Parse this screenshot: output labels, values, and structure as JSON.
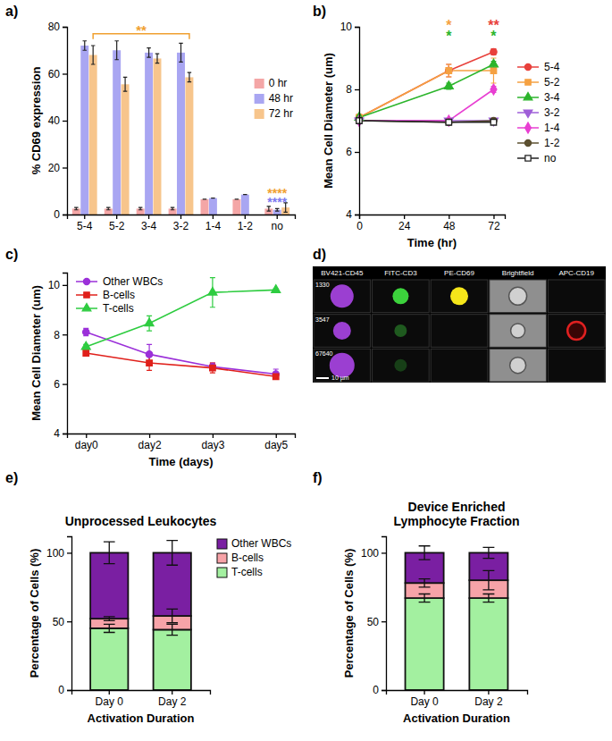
{
  "chart_data": [
    {
      "type": "bar",
      "panel_label": "a)",
      "y_label": "% CD69 expression",
      "categories": [
        "5-4",
        "5-2",
        "3-4",
        "3-2",
        "1-4",
        "1-2",
        "no"
      ],
      "series": [
        {
          "name": "0 hr",
          "color": "#f4a6a6",
          "values": [
            2.5,
            2.5,
            2.5,
            2.5,
            6.5,
            6.5,
            2.5
          ],
          "errors": [
            0.5,
            0.5,
            0.5,
            0.5,
            0,
            0,
            1
          ]
        },
        {
          "name": "48 hr",
          "color": "#a9a6f2",
          "values": [
            72,
            70,
            69,
            69,
            7,
            8.5,
            2
          ],
          "errors": [
            2,
            4,
            2,
            4,
            0,
            0,
            0.5
          ]
        },
        {
          "name": "72 hr",
          "color": "#f7c58c",
          "values": [
            68,
            55.5,
            66.5,
            58.5,
            null,
            null,
            3
          ],
          "errors": [
            4,
            3,
            2,
            2,
            null,
            null,
            2
          ]
        }
      ],
      "ylim": [
        0,
        80
      ],
      "yticks": [
        0,
        20,
        40,
        60,
        80
      ],
      "legend": "top-right",
      "annotations": [
        {
          "text": "**",
          "from": "5-4",
          "to": "3-2",
          "series": "72 hr",
          "color": "#f0a030"
        },
        {
          "text": "****",
          "category": "no",
          "series": "48 hr",
          "color": "#7b78f0"
        },
        {
          "text": "****",
          "category": "no",
          "series": "72 hr",
          "color": "#f0a030"
        }
      ]
    },
    {
      "type": "line",
      "panel_label": "b)",
      "x_label": "Time (hr)",
      "y_label": "Mean Cell Diameter (um)",
      "x": [
        0,
        48,
        72
      ],
      "xlim": [
        0,
        78
      ],
      "xticks": [
        0,
        24,
        48,
        72
      ],
      "ylim": [
        4,
        10
      ],
      "yticks": [
        4,
        6,
        8,
        10
      ],
      "legend": "right",
      "series": [
        {
          "name": "5-4",
          "color": "#e8413c",
          "marker": "circle",
          "values": [
            7.1,
            8.6,
            9.2
          ],
          "errors": [
            0.1,
            0.2,
            0.1
          ]
        },
        {
          "name": "5-2",
          "color": "#f5a142",
          "marker": "square",
          "values": [
            7.1,
            8.6,
            8.6
          ],
          "errors": [
            0.1,
            0.2,
            0.4
          ]
        },
        {
          "name": "3-4",
          "color": "#2cb52c",
          "marker": "triangle",
          "values": [
            7.1,
            8.1,
            8.8
          ],
          "errors": [
            0.05,
            0.1,
            0.1
          ]
        },
        {
          "name": "3-2",
          "color": "#9f5fd8",
          "marker": "triangle-down",
          "values": [
            7.0,
            7.0,
            7.0
          ],
          "errors": [
            0.05,
            0.05,
            0.05
          ]
        },
        {
          "name": "1-4",
          "color": "#e83fd2",
          "marker": "diamond",
          "values": [
            7.0,
            7.0,
            8.0
          ],
          "errors": [
            0.05,
            0.05,
            0.1
          ]
        },
        {
          "name": "1-2",
          "color": "#5c5030",
          "marker": "circle",
          "values": [
            7.0,
            6.95,
            7.0
          ],
          "errors": [
            0.05,
            0.05,
            0.05
          ]
        },
        {
          "name": "no",
          "color": "#222222",
          "marker": "open-square",
          "values": [
            7.0,
            6.95,
            6.95
          ],
          "errors": [
            0.05,
            0.05,
            0.05
          ]
        }
      ],
      "annotations": [
        {
          "text": "*",
          "x": 48,
          "color": "#f5a142"
        },
        {
          "text": "*",
          "x": 48,
          "color": "#2cb52c"
        },
        {
          "text": "**",
          "x": 72,
          "color": "#e8413c"
        },
        {
          "text": "*",
          "x": 72,
          "color": "#2cb52c"
        }
      ]
    },
    {
      "type": "line",
      "panel_label": "c)",
      "x_label": "Time (days)",
      "y_label": "Mean Cell Diameter (um)",
      "categories": [
        "day0",
        "day2",
        "day3",
        "day5"
      ],
      "ylim": [
        4,
        10.5
      ],
      "yticks": [
        4,
        6,
        8,
        10
      ],
      "legend": "top-left",
      "series": [
        {
          "name": "Other WBCs",
          "color": "#9b30d9",
          "marker": "circle",
          "values": [
            8.1,
            7.2,
            6.7,
            6.4
          ],
          "errors": [
            0.15,
            0.4,
            0.15,
            0.2
          ]
        },
        {
          "name": "B-cells",
          "color": "#e0201b",
          "marker": "square",
          "values": [
            7.25,
            6.85,
            6.65,
            6.3
          ],
          "errors": [
            0.1,
            0.3,
            0.2,
            0.1
          ]
        },
        {
          "name": "T-cells",
          "color": "#2ecc40",
          "marker": "triangle",
          "values": [
            7.5,
            8.45,
            9.7,
            9.8
          ],
          "errors": [
            0.1,
            0.3,
            0.6,
            0.05
          ]
        }
      ]
    },
    {
      "type": "bar",
      "stacked": true,
      "panel_label": "e)",
      "title": "Unprocessed Leukocytes",
      "x_label": "Activation Duration",
      "y_label": "Percentage of Cells (%)",
      "categories": [
        "Day 0",
        "Day 2"
      ],
      "ylim": [
        0,
        112
      ],
      "yticks": [
        0,
        50,
        100
      ],
      "legend": "right",
      "series": [
        {
          "name": "T-cells",
          "color": "#a3f0a0",
          "values": [
            45,
            44
          ],
          "errors": [
            3,
            4
          ]
        },
        {
          "name": "B-cells",
          "color": "#f7a3a8",
          "values": [
            7,
            10
          ],
          "errors": [
            1.5,
            5
          ]
        },
        {
          "name": "Other WBCs",
          "color": "#7a1fa2",
          "values": [
            48,
            46
          ],
          "errors": [
            8,
            9
          ]
        }
      ]
    },
    {
      "type": "bar",
      "stacked": true,
      "panel_label": "f)",
      "title": "Device Enriched Lymphocyte Fraction",
      "x_label": "Activation Duration",
      "y_label": "Percentage of Cells (%)",
      "categories": [
        "Day 0",
        "Day 2"
      ],
      "ylim": [
        0,
        112
      ],
      "yticks": [
        0,
        50,
        100
      ],
      "series": [
        {
          "color": "#a3f0a0",
          "values": [
            67,
            67
          ],
          "errors": [
            3,
            3
          ]
        },
        {
          "color": "#f7a3a8",
          "values": [
            11,
            13
          ],
          "errors": [
            3,
            7
          ]
        },
        {
          "color": "#7a1fa2",
          "values": [
            22,
            20
          ],
          "errors": [
            5,
            4
          ]
        }
      ]
    }
  ],
  "image_panel": {
    "panel_label": "d)",
    "channels": [
      "BV421-CD45",
      "FITC-CD3",
      "PE-CD69",
      "Brightfield",
      "APC-CD19"
    ],
    "rows": [
      "1330",
      "3547",
      "67640"
    ],
    "scale_bar": "10 µm"
  }
}
